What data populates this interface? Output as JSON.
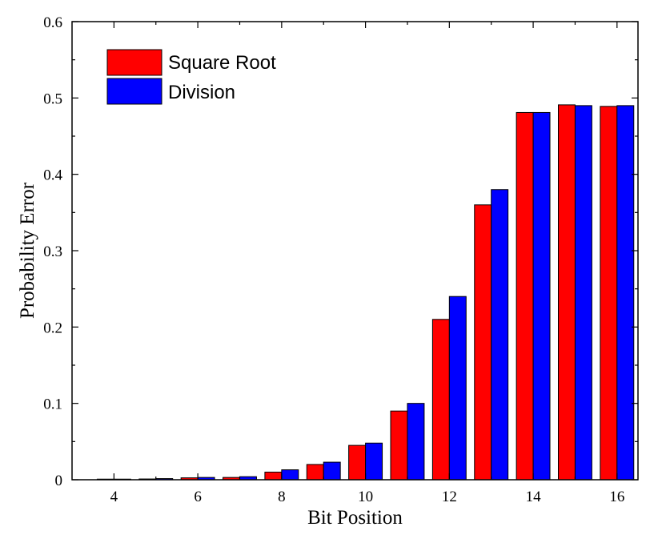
{
  "chart_data": {
    "type": "bar",
    "title": "",
    "xlabel": "Bit Position",
    "ylabel": "Probability Error",
    "categories": [
      4,
      5,
      6,
      7,
      8,
      9,
      10,
      11,
      12,
      13,
      14,
      15,
      16
    ],
    "x_tick_labels": [
      "4",
      "6",
      "8",
      "10",
      "12",
      "14",
      "16"
    ],
    "y_tick_labels": [
      "0",
      "0.1",
      "0.2",
      "0.3",
      "0.4",
      "0.5",
      "0.6"
    ],
    "xlim": [
      3,
      16.5
    ],
    "ylim": [
      0,
      0.6
    ],
    "grid": false,
    "legend_position": "top-left",
    "series": [
      {
        "name": "Square Root",
        "color": "#ff0000",
        "values": [
          0.0008,
          0.001,
          0.0025,
          0.003,
          0.01,
          0.02,
          0.045,
          0.09,
          0.21,
          0.36,
          0.481,
          0.491,
          0.489
        ]
      },
      {
        "name": "Division",
        "color": "#0000ff",
        "values": [
          0.0008,
          0.0015,
          0.003,
          0.004,
          0.013,
          0.023,
          0.048,
          0.1,
          0.24,
          0.38,
          0.481,
          0.49,
          0.49
        ]
      }
    ]
  }
}
